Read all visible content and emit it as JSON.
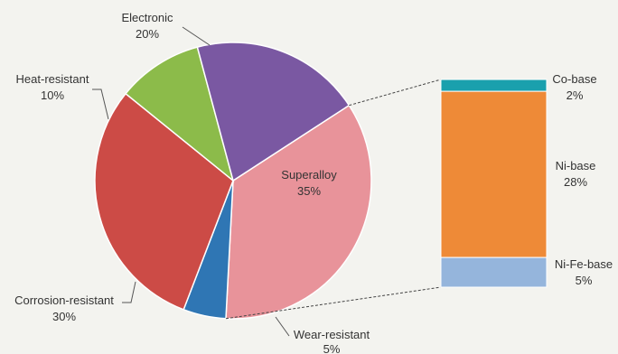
{
  "chart_data": {
    "type": "pie",
    "main": {
      "slices": [
        {
          "label": "Superalloy",
          "value_label": "35%",
          "value": 35,
          "color": "#e8939a"
        },
        {
          "label": "Wear-resistant",
          "value_label": "5%",
          "value": 5,
          "color": "#2f76b4"
        },
        {
          "label": "Corrosion-resistant",
          "value_label": "30%",
          "value": 30,
          "color": "#cc4b46"
        },
        {
          "label": "Heat-resistant",
          "value_label": "10%",
          "value": 10,
          "color": "#8cbb4a"
        },
        {
          "label": "Electronic",
          "value_label": "20%",
          "value": 20,
          "color": "#7a58a2"
        }
      ]
    },
    "breakdown": {
      "of": "Superalloy",
      "type": "stacked-bar",
      "segments": [
        {
          "label": "Co-base",
          "value_label": "2%",
          "value": 2,
          "color": "#1aa0ad"
        },
        {
          "label": "Ni-base",
          "value_label": "28%",
          "value": 28,
          "color": "#ee8a37"
        },
        {
          "label": "Ni-Fe-base",
          "value_label": "5%",
          "value": 5,
          "color": "#95b5dc"
        }
      ]
    }
  }
}
